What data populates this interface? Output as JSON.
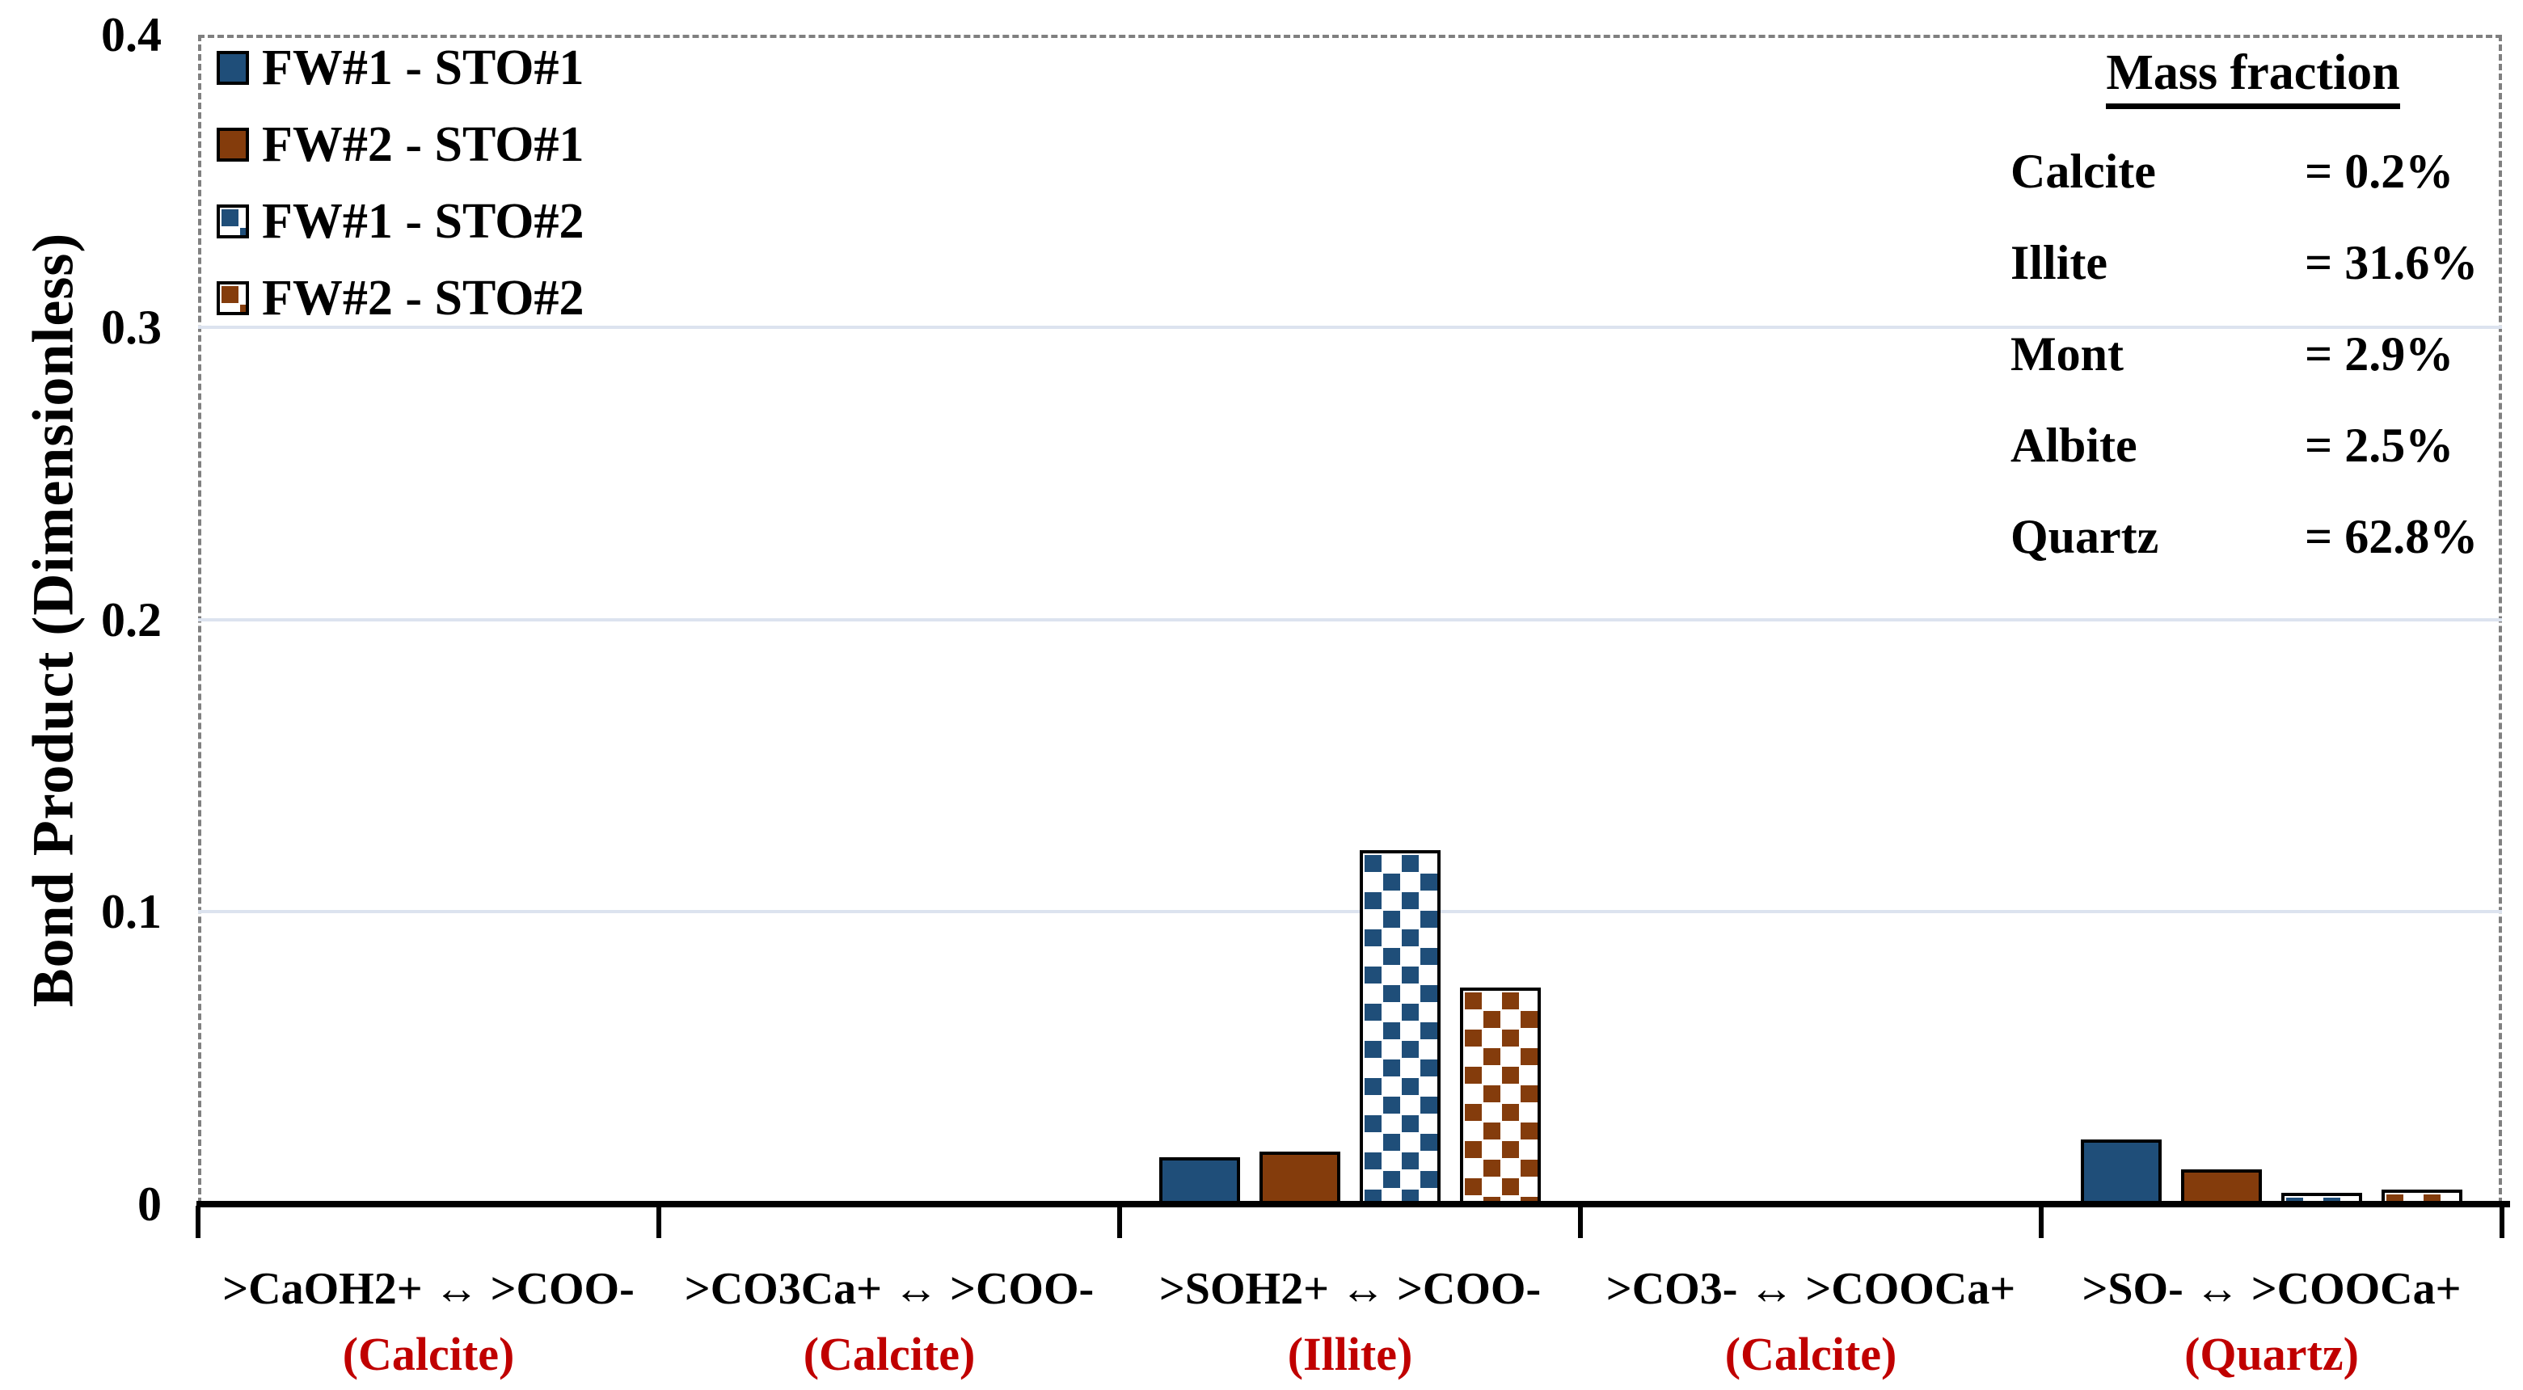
{
  "y_axis": {
    "title": "Bond Product (Dimensionless)",
    "tick_labels": [
      "0",
      "0.1",
      "0.2",
      "0.3",
      "0.4"
    ]
  },
  "legend": {
    "items": [
      {
        "label": "FW#1 - STO#1",
        "fill": "solid",
        "color_key": "blue"
      },
      {
        "label": "FW#2 - STO#1",
        "fill": "solid",
        "color_key": "brown"
      },
      {
        "label": "FW#1 - STO#2",
        "fill": "pattern",
        "color_key": "blue"
      },
      {
        "label": "FW#2 - STO#2",
        "fill": "pattern",
        "color_key": "brown"
      }
    ]
  },
  "mass_fraction": {
    "title": "Mass fraction",
    "rows": [
      {
        "mineral": "Calcite",
        "value": "= 0.2%"
      },
      {
        "mineral": "Illite",
        "value": "= 31.6%"
      },
      {
        "mineral": "Mont",
        "value": "= 2.9%"
      },
      {
        "mineral": "Albite",
        "value": "= 2.5%"
      },
      {
        "mineral": "Quartz",
        "value": "= 62.8%"
      }
    ]
  },
  "colors": {
    "blue": "#1F4E79",
    "brown": "#843C0C",
    "red_label": "#C00000",
    "gridline": "#DCE3EF",
    "frame_dash": "#808080",
    "axis": "#000000"
  },
  "chart_data": {
    "type": "bar",
    "title": "",
    "xlabel": "",
    "ylabel": "Bond Product (Dimensionless)",
    "ylim": [
      0,
      0.4
    ],
    "yticks": [
      0,
      0.1,
      0.2,
      0.3,
      0.4
    ],
    "grid": "horizontal light gridlines at 0.1, 0.2, 0.3",
    "legend_position": "top-left inside plot",
    "categories": [
      {
        "label": ">CaOH2+ ↔ >COO-",
        "mineral": "(Calcite)"
      },
      {
        "label": ">CO3Ca+ ↔ >COO-",
        "mineral": "(Calcite)"
      },
      {
        "label": ">SOH2+ ↔ >COO-",
        "mineral": "(Illite)"
      },
      {
        "label": ">CO3- ↔ >COOCa+",
        "mineral": "(Calcite)"
      },
      {
        "label": ">SO- ↔ >COOCa+",
        "mineral": "(Quartz)"
      }
    ],
    "series": [
      {
        "name": "FW#1 - STO#1",
        "fill": "solid",
        "color_key": "blue",
        "values": [
          0.001,
          0.001,
          0.016,
          0.001,
          0.022
        ]
      },
      {
        "name": "FW#2 - STO#1",
        "fill": "solid",
        "color_key": "brown",
        "values": [
          0.001,
          0.001,
          0.018,
          0.001,
          0.012
        ]
      },
      {
        "name": "FW#1 - STO#2",
        "fill": "pattern",
        "color_key": "blue",
        "values": [
          0.001,
          0.001,
          0.121,
          0.001,
          0.004
        ]
      },
      {
        "name": "FW#2 - STO#2",
        "fill": "pattern",
        "color_key": "brown",
        "values": [
          0.001,
          0.001,
          0.074,
          0.001,
          0.005
        ]
      }
    ]
  }
}
